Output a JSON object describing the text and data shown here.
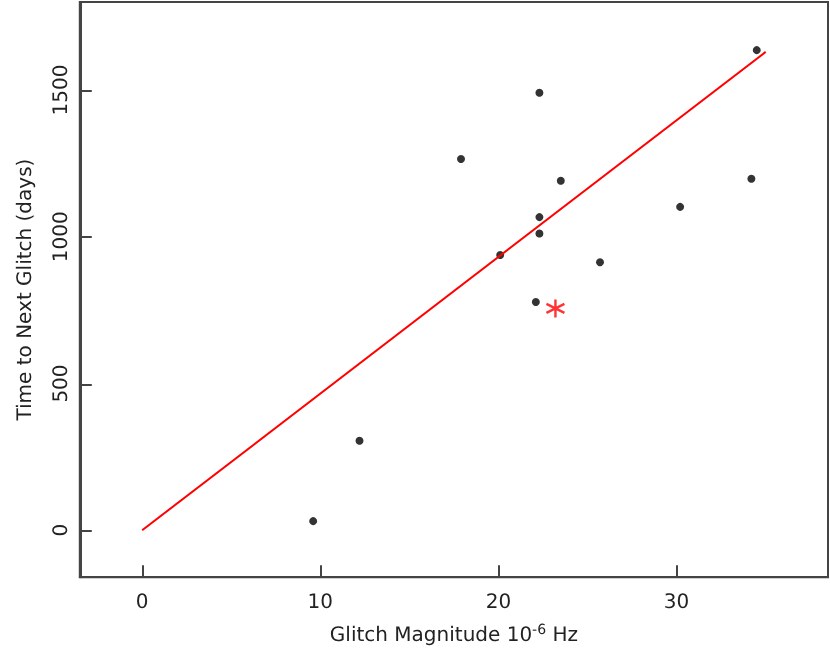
{
  "chart_data": {
    "type": "scatter",
    "xlabel": "Glitch Magnitude 10$^{-6}$ Hz",
    "ylabel": "Time to Next Glitch (days)",
    "xlim": [
      -3.5,
      38.5
    ],
    "xticks": [
      0,
      10,
      20,
      30
    ],
    "ylim": [
      -160,
      1800
    ],
    "yticks": [
      0,
      500,
      1000,
      1500
    ],
    "grid": false,
    "marker": "circle",
    "series": [
      {
        "color": "#000000",
        "x": [
          34.5,
          22.3,
          17.9,
          23.5,
          34.2,
          30.2,
          22.3,
          22.3,
          20.1,
          25.7,
          22.1,
          9.6,
          12.2
        ],
        "values": [
          1636,
          1491,
          1265,
          1191,
          1198,
          1102,
          1067,
          1011,
          938,
          913,
          778,
          31,
          305
        ]
      },
      {
        "type": "scatter",
        "color": "#ff0000",
        "marker": "cross",
        "x": [
          23.2
        ],
        "values": [
          756
        ]
      },
      {
        "type": "line",
        "color": "#ff0000",
        "marker": "none",
        "line_style": "solid",
        "x": [
          0,
          35
        ],
        "values": [
          0,
          1630
        ]
      }
    ]
  }
}
